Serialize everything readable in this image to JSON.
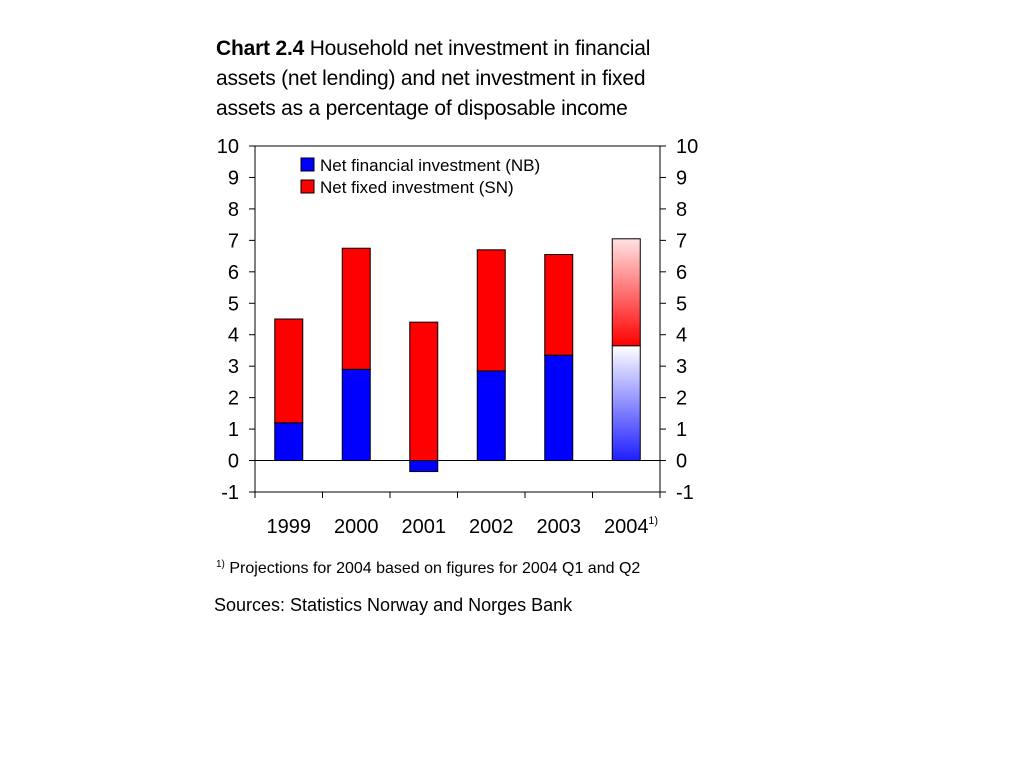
{
  "title": {
    "label": "Chart 2.4",
    "text": "Household net investment in financial assets (net lending) and net investment in fixed assets as a percentage of disposable income"
  },
  "chart_data": {
    "type": "bar",
    "stacked": true,
    "categories": [
      "1999",
      "2000",
      "2001",
      "2002",
      "2003",
      "2004"
    ],
    "last_category_footnote_marker": "1)",
    "series": [
      {
        "name": "Net financial investment (NB)",
        "color": "#0000ff",
        "values": [
          1.2,
          2.9,
          -0.35,
          2.85,
          3.35,
          3.65
        ]
      },
      {
        "name": "Net fixed investment (SN)",
        "color": "#ff0000",
        "values": [
          3.3,
          3.85,
          4.4,
          3.85,
          3.2,
          3.4
        ]
      }
    ],
    "projection_category": "2004",
    "ylim": [
      -1,
      10
    ],
    "yticks": [
      -1,
      0,
      1,
      2,
      3,
      4,
      5,
      6,
      7,
      8,
      9,
      10
    ],
    "secondary_y_axis": true,
    "legend_position": "top-left",
    "grid": false
  },
  "footnote": {
    "marker": "1)",
    "text": "Projections for 2004 based on figures for 2004 Q1 and Q2"
  },
  "sources": "Sources: Statistics Norway and Norges Bank"
}
